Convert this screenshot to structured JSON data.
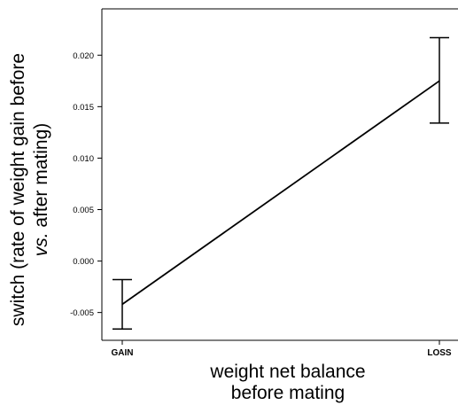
{
  "chart_data": {
    "type": "line",
    "title": "",
    "xlabel_lines": [
      "weight net balance",
      "before mating"
    ],
    "ylabel_lines": [
      {
        "parts": [
          {
            "text": "switch (rate of weight gain before",
            "italic": false
          }
        ]
      },
      {
        "parts": [
          {
            "text": "vs.",
            "italic": true
          },
          {
            "text": " after mating)",
            "italic": false
          }
        ]
      }
    ],
    "categories": [
      "GAIN",
      "LOSS"
    ],
    "ylim": [
      -0.0077,
      0.0245
    ],
    "yticks": [
      -0.005,
      0.0,
      0.005,
      0.01,
      0.015,
      0.02
    ],
    "ytick_labels": [
      "-0.005",
      "0.000",
      "0.005",
      "0.010",
      "0.015",
      "0.020"
    ],
    "series": [
      {
        "values": [
          -0.0042,
          0.0175
        ],
        "error_low": [
          -0.0066,
          0.0134
        ],
        "error_high": [
          -0.0018,
          0.0217
        ]
      }
    ],
    "grid": false,
    "legend": "none"
  },
  "colors": {
    "line": "#000000",
    "axis": "#000000",
    "background": "#ffffff"
  }
}
